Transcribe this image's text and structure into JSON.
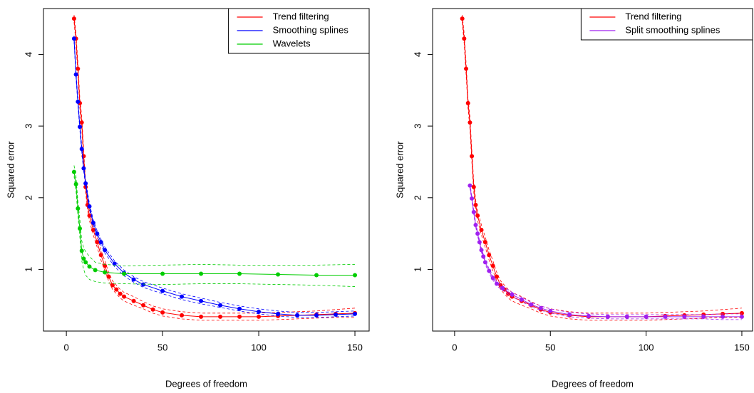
{
  "chart_data": [
    {
      "type": "line",
      "xlabel": "Degrees of freedom",
      "ylabel": "Squared error",
      "xlim": [
        -11.9,
        157.4
      ],
      "ylim": [
        0.14,
        4.64
      ],
      "xticks": [
        0,
        50,
        100,
        150
      ],
      "yticks": [
        1,
        2,
        3,
        4
      ],
      "legend": "top-right",
      "series": [
        {
          "name": "Trend filtering",
          "color": "#ff0000",
          "x": [
            4,
            5,
            6,
            7,
            8,
            9,
            10,
            11,
            12,
            14,
            16,
            18,
            20,
            22,
            24,
            26,
            28,
            30,
            35,
            40,
            45,
            50,
            60,
            70,
            80,
            90,
            100,
            110,
            120,
            130,
            140,
            150
          ],
          "values": [
            4.5,
            4.22,
            3.8,
            3.32,
            3.05,
            2.58,
            2.15,
            1.9,
            1.75,
            1.55,
            1.38,
            1.2,
            1.05,
            0.9,
            0.78,
            0.72,
            0.66,
            0.62,
            0.56,
            0.5,
            0.44,
            0.4,
            0.36,
            0.34,
            0.34,
            0.34,
            0.34,
            0.35,
            0.36,
            0.37,
            0.38,
            0.39
          ],
          "lower": [
            4.45,
            4.15,
            3.72,
            3.25,
            2.97,
            2.5,
            2.08,
            1.83,
            1.68,
            1.48,
            1.31,
            1.13,
            0.98,
            0.84,
            0.72,
            0.66,
            0.6,
            0.56,
            0.5,
            0.45,
            0.39,
            0.35,
            0.31,
            0.29,
            0.29,
            0.29,
            0.29,
            0.3,
            0.31,
            0.32,
            0.33,
            0.33
          ],
          "upper": [
            4.55,
            4.29,
            3.88,
            3.39,
            3.13,
            2.66,
            2.22,
            1.97,
            1.82,
            1.62,
            1.45,
            1.27,
            1.12,
            0.96,
            0.84,
            0.78,
            0.72,
            0.68,
            0.62,
            0.55,
            0.49,
            0.45,
            0.41,
            0.39,
            0.39,
            0.39,
            0.39,
            0.4,
            0.41,
            0.42,
            0.44,
            0.46
          ]
        },
        {
          "name": "Smoothing splines",
          "color": "#0000ff",
          "x": [
            4,
            5,
            6,
            7,
            8,
            9,
            10,
            12,
            14,
            16,
            18,
            20,
            25,
            30,
            35,
            40,
            50,
            60,
            70,
            80,
            90,
            100,
            110,
            120,
            130,
            140,
            150
          ],
          "values": [
            4.22,
            3.72,
            3.34,
            2.99,
            2.68,
            2.41,
            2.2,
            1.88,
            1.65,
            1.5,
            1.38,
            1.27,
            1.08,
            0.95,
            0.86,
            0.79,
            0.7,
            0.62,
            0.56,
            0.5,
            0.45,
            0.41,
            0.38,
            0.36,
            0.36,
            0.37,
            0.38
          ],
          "lower": [
            4.18,
            3.68,
            3.3,
            2.95,
            2.64,
            2.37,
            2.16,
            1.84,
            1.61,
            1.46,
            1.34,
            1.23,
            1.04,
            0.91,
            0.82,
            0.75,
            0.66,
            0.58,
            0.52,
            0.47,
            0.42,
            0.38,
            0.35,
            0.33,
            0.33,
            0.34,
            0.35
          ],
          "upper": [
            4.26,
            3.76,
            3.38,
            3.03,
            2.72,
            2.45,
            2.24,
            1.92,
            1.69,
            1.54,
            1.42,
            1.31,
            1.12,
            0.99,
            0.9,
            0.83,
            0.74,
            0.66,
            0.6,
            0.54,
            0.49,
            0.45,
            0.42,
            0.4,
            0.4,
            0.41,
            0.42
          ]
        },
        {
          "name": "Wavelets",
          "color": "#00cd00",
          "x": [
            4,
            5,
            6,
            7,
            8,
            9,
            10,
            12,
            15,
            20,
            30,
            50,
            70,
            90,
            110,
            130,
            150
          ],
          "values": [
            2.36,
            2.19,
            1.85,
            1.57,
            1.26,
            1.15,
            1.1,
            1.04,
            0.99,
            0.96,
            0.94,
            0.94,
            0.94,
            0.94,
            0.93,
            0.92,
            0.92
          ],
          "lower": [
            2.3,
            2.1,
            1.75,
            1.45,
            1.12,
            1.0,
            0.92,
            0.86,
            0.83,
            0.81,
            0.8,
            0.79,
            0.8,
            0.8,
            0.79,
            0.78,
            0.76
          ],
          "upper": [
            2.45,
            2.3,
            1.95,
            1.7,
            1.4,
            1.3,
            1.25,
            1.18,
            1.1,
            1.07,
            1.05,
            1.06,
            1.07,
            1.06,
            1.06,
            1.06,
            1.07
          ]
        }
      ]
    },
    {
      "type": "line",
      "xlabel": "Degrees of freedom",
      "ylabel": "Squared error",
      "xlim": [
        -11.5,
        155.6
      ],
      "ylim": [
        0.14,
        4.64
      ],
      "xticks": [
        0,
        50,
        100,
        150
      ],
      "yticks": [
        1,
        2,
        3,
        4
      ],
      "legend": "top-right",
      "series": [
        {
          "name": "Trend filtering",
          "color": "#ff0000",
          "x": [
            4,
            5,
            6,
            7,
            8,
            9,
            10,
            11,
            12,
            14,
            16,
            18,
            20,
            22,
            24,
            26,
            28,
            30,
            35,
            40,
            45,
            50,
            60,
            70,
            80,
            90,
            100,
            110,
            120,
            130,
            140,
            150
          ],
          "values": [
            4.5,
            4.22,
            3.8,
            3.32,
            3.05,
            2.58,
            2.15,
            1.9,
            1.75,
            1.55,
            1.38,
            1.2,
            1.05,
            0.9,
            0.78,
            0.72,
            0.66,
            0.62,
            0.56,
            0.5,
            0.44,
            0.4,
            0.36,
            0.34,
            0.34,
            0.34,
            0.34,
            0.35,
            0.36,
            0.37,
            0.38,
            0.39
          ],
          "lower": [
            4.45,
            4.15,
            3.72,
            3.25,
            2.97,
            2.5,
            2.08,
            1.83,
            1.68,
            1.48,
            1.31,
            1.13,
            0.98,
            0.84,
            0.72,
            0.66,
            0.6,
            0.56,
            0.5,
            0.45,
            0.39,
            0.35,
            0.31,
            0.29,
            0.29,
            0.29,
            0.29,
            0.3,
            0.31,
            0.32,
            0.33,
            0.33
          ],
          "upper": [
            4.55,
            4.29,
            3.88,
            3.39,
            3.13,
            2.66,
            2.22,
            1.97,
            1.82,
            1.62,
            1.45,
            1.27,
            1.12,
            0.96,
            0.84,
            0.78,
            0.72,
            0.68,
            0.62,
            0.55,
            0.49,
            0.45,
            0.41,
            0.39,
            0.39,
            0.39,
            0.39,
            0.4,
            0.41,
            0.42,
            0.44,
            0.46
          ]
        },
        {
          "name": "Split smoothing splines",
          "color": "#a020f0",
          "x": [
            8,
            9,
            10,
            11,
            12,
            13,
            14,
            15,
            16,
            18,
            20,
            22,
            25,
            30,
            35,
            40,
            45,
            50,
            60,
            70,
            80,
            90,
            100,
            110,
            120,
            130,
            140,
            150
          ],
          "values": [
            2.17,
            1.99,
            1.8,
            1.62,
            1.5,
            1.38,
            1.27,
            1.18,
            1.1,
            0.98,
            0.88,
            0.8,
            0.74,
            0.65,
            0.58,
            0.51,
            0.46,
            0.42,
            0.37,
            0.35,
            0.34,
            0.34,
            0.34,
            0.34,
            0.34,
            0.34,
            0.34,
            0.34
          ],
          "lower": [
            2.14,
            1.96,
            1.77,
            1.59,
            1.47,
            1.35,
            1.24,
            1.15,
            1.07,
            0.95,
            0.85,
            0.77,
            0.71,
            0.62,
            0.55,
            0.48,
            0.43,
            0.39,
            0.34,
            0.32,
            0.31,
            0.31,
            0.31,
            0.31,
            0.31,
            0.31,
            0.3,
            0.3
          ],
          "upper": [
            2.2,
            2.02,
            1.83,
            1.65,
            1.53,
            1.41,
            1.3,
            1.21,
            1.13,
            1.01,
            0.91,
            0.83,
            0.77,
            0.68,
            0.61,
            0.54,
            0.49,
            0.45,
            0.4,
            0.38,
            0.37,
            0.37,
            0.37,
            0.37,
            0.37,
            0.37,
            0.38,
            0.38
          ]
        }
      ]
    }
  ]
}
